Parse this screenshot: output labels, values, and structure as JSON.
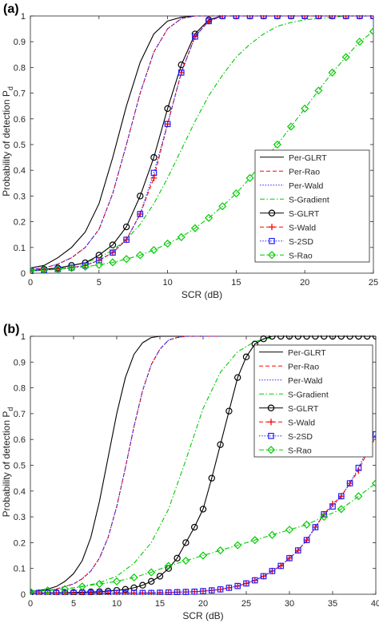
{
  "chart_data": [
    {
      "panel_label": "(a)",
      "type": "line",
      "xlabel": "SCR (dB)",
      "ylabel": "Probability of detection P",
      "ylabel_sub": "d",
      "xlim": [
        0,
        25
      ],
      "ylim": [
        0,
        1
      ],
      "xticks": [
        0,
        5,
        10,
        15,
        20,
        25
      ],
      "yticks": [
        0,
        0.1,
        0.2,
        0.3,
        0.4,
        0.5,
        0.6,
        0.7,
        0.8,
        0.9,
        1
      ],
      "grid": false,
      "legend_position": "lower-right",
      "series": [
        {
          "name": "Per-GLRT",
          "color": "#000000",
          "dash": "solid",
          "marker": "none",
          "x": [
            0,
            1,
            2,
            3,
            4,
            5,
            6,
            7,
            8,
            9,
            10,
            11,
            12,
            13,
            14,
            15,
            16,
            17,
            18,
            19,
            20,
            21,
            22,
            23,
            24,
            25
          ],
          "y": [
            0.02,
            0.03,
            0.06,
            0.1,
            0.16,
            0.27,
            0.45,
            0.65,
            0.82,
            0.93,
            0.98,
            0.995,
            1,
            1,
            1,
            1,
            1,
            1,
            1,
            1,
            1,
            1,
            1,
            1,
            1,
            1
          ]
        },
        {
          "name": "Per-Rao",
          "color": "#ff0000",
          "dash": "dashed",
          "marker": "none",
          "x": [
            0,
            1,
            2,
            3,
            4,
            5,
            6,
            7,
            8,
            9,
            10,
            11,
            12,
            13,
            14,
            15,
            16,
            17,
            18,
            19,
            20,
            21,
            22,
            23,
            24,
            25
          ],
          "y": [
            0.015,
            0.02,
            0.035,
            0.06,
            0.1,
            0.17,
            0.31,
            0.5,
            0.7,
            0.86,
            0.95,
            0.99,
            1,
            1,
            1,
            1,
            1,
            1,
            1,
            1,
            1,
            1,
            1,
            1,
            1,
            1
          ]
        },
        {
          "name": "Per-Wald",
          "color": "#2020ff",
          "dash": "dotted",
          "marker": "none",
          "x": [
            0,
            1,
            2,
            3,
            4,
            5,
            6,
            7,
            8,
            9,
            10,
            11,
            12,
            13,
            14,
            15,
            16,
            17,
            18,
            19,
            20,
            21,
            22,
            23,
            24,
            25
          ],
          "y": [
            0.015,
            0.02,
            0.035,
            0.06,
            0.1,
            0.17,
            0.31,
            0.5,
            0.7,
            0.86,
            0.95,
            0.99,
            1,
            1,
            1,
            1,
            1,
            1,
            1,
            1,
            1,
            1,
            1,
            1,
            1,
            1
          ]
        },
        {
          "name": "S-Gradient",
          "color": "#00cc00",
          "dash": "dashdot",
          "marker": "none",
          "x": [
            0,
            1,
            2,
            3,
            4,
            5,
            6,
            7,
            8,
            9,
            10,
            11,
            12,
            13,
            14,
            15,
            16,
            17,
            18,
            19,
            20,
            21,
            22,
            23,
            24,
            25
          ],
          "y": [
            0.01,
            0.015,
            0.02,
            0.03,
            0.04,
            0.06,
            0.09,
            0.13,
            0.19,
            0.27,
            0.37,
            0.48,
            0.59,
            0.69,
            0.77,
            0.84,
            0.89,
            0.93,
            0.96,
            0.975,
            0.985,
            0.99,
            0.995,
            1,
            1,
            1
          ]
        },
        {
          "name": "S-GLRT",
          "color": "#000000",
          "dash": "solid",
          "marker": "circle",
          "x": [
            0,
            1,
            2,
            3,
            4,
            5,
            6,
            7,
            8,
            9,
            10,
            11,
            12,
            13,
            14,
            15,
            16,
            17,
            18,
            19,
            20,
            21,
            22,
            23,
            24,
            25
          ],
          "y": [
            0.01,
            0.015,
            0.02,
            0.03,
            0.04,
            0.07,
            0.11,
            0.18,
            0.3,
            0.45,
            0.64,
            0.81,
            0.93,
            0.985,
            1,
            1,
            1,
            1,
            1,
            1,
            1,
            1,
            1,
            1,
            1,
            1
          ]
        },
        {
          "name": "S-Wald",
          "color": "#ff0000",
          "dash": "dashed",
          "marker": "plus",
          "x": [
            0,
            1,
            2,
            3,
            4,
            5,
            6,
            7,
            8,
            9,
            10,
            11,
            12,
            13,
            14,
            15,
            16,
            17,
            18,
            19,
            20,
            21,
            22,
            23,
            24,
            25
          ],
          "y": [
            0.008,
            0.012,
            0.016,
            0.022,
            0.03,
            0.05,
            0.08,
            0.13,
            0.23,
            0.37,
            0.58,
            0.78,
            0.92,
            0.98,
            1,
            1,
            1,
            1,
            1,
            1,
            1,
            1,
            1,
            1,
            1,
            1
          ]
        },
        {
          "name": "S-2SD",
          "color": "#2020ff",
          "dash": "dotted",
          "marker": "square",
          "x": [
            0,
            1,
            2,
            3,
            4,
            5,
            6,
            7,
            8,
            9,
            10,
            11,
            12,
            13,
            14,
            15,
            16,
            17,
            18,
            19,
            20,
            21,
            22,
            23,
            24,
            25
          ],
          "y": [
            0.008,
            0.012,
            0.016,
            0.022,
            0.03,
            0.05,
            0.08,
            0.13,
            0.23,
            0.39,
            0.58,
            0.78,
            0.92,
            0.98,
            1,
            1,
            1,
            1,
            1,
            1,
            1,
            1,
            1,
            1,
            1,
            1
          ]
        },
        {
          "name": "S-Rao",
          "color": "#00cc00",
          "dash": "dashdot",
          "marker": "diamond",
          "x": [
            0,
            1,
            2,
            3,
            4,
            5,
            6,
            7,
            8,
            9,
            10,
            11,
            12,
            13,
            14,
            15,
            16,
            17,
            18,
            19,
            20,
            21,
            22,
            23,
            24,
            25
          ],
          "y": [
            0.01,
            0.012,
            0.015,
            0.02,
            0.025,
            0.032,
            0.042,
            0.055,
            0.07,
            0.09,
            0.115,
            0.14,
            0.175,
            0.215,
            0.26,
            0.31,
            0.37,
            0.44,
            0.5,
            0.57,
            0.64,
            0.71,
            0.78,
            0.84,
            0.9,
            0.94
          ]
        }
      ]
    },
    {
      "panel_label": "(b)",
      "type": "line",
      "xlabel": "SCR (dB)",
      "ylabel": "Probability of detection P",
      "ylabel_sub": "d",
      "xlim": [
        0,
        40
      ],
      "ylim": [
        0,
        1
      ],
      "xticks": [
        0,
        5,
        10,
        15,
        20,
        25,
        30,
        35,
        40
      ],
      "yticks": [
        0,
        0.1,
        0.2,
        0.3,
        0.4,
        0.5,
        0.6,
        0.7,
        0.8,
        0.9,
        1
      ],
      "grid": false,
      "legend_position": "top-right",
      "series": [
        {
          "name": "Per-GLRT",
          "color": "#000000",
          "dash": "solid",
          "marker": "none",
          "x": [
            0,
            1,
            2,
            3,
            4,
            5,
            6,
            7,
            8,
            9,
            10,
            11,
            12,
            13,
            14,
            15,
            16,
            17,
            18,
            19,
            20
          ],
          "y": [
            0.01,
            0.015,
            0.02,
            0.03,
            0.05,
            0.08,
            0.13,
            0.22,
            0.36,
            0.53,
            0.7,
            0.84,
            0.93,
            0.975,
            0.995,
            1,
            1,
            1,
            1,
            1,
            1
          ]
        },
        {
          "name": "Per-Rao",
          "color": "#ff0000",
          "dash": "dashed",
          "marker": "none",
          "x": [
            0,
            1,
            2,
            3,
            4,
            5,
            6,
            7,
            8,
            9,
            10,
            11,
            12,
            13,
            14,
            15,
            16,
            17,
            18,
            19,
            20,
            21,
            22
          ],
          "y": [
            0.01,
            0.012,
            0.015,
            0.02,
            0.03,
            0.04,
            0.06,
            0.09,
            0.14,
            0.22,
            0.34,
            0.49,
            0.65,
            0.79,
            0.89,
            0.95,
            0.985,
            0.995,
            1,
            1,
            1,
            1,
            1
          ]
        },
        {
          "name": "Per-Wald",
          "color": "#2020ff",
          "dash": "dotted",
          "marker": "none",
          "x": [
            0,
            1,
            2,
            3,
            4,
            5,
            6,
            7,
            8,
            9,
            10,
            11,
            12,
            13,
            14,
            15,
            16,
            17,
            18,
            19,
            20,
            21,
            22
          ],
          "y": [
            0.01,
            0.012,
            0.015,
            0.02,
            0.03,
            0.04,
            0.06,
            0.09,
            0.14,
            0.22,
            0.34,
            0.49,
            0.65,
            0.79,
            0.89,
            0.95,
            0.985,
            0.995,
            1,
            1,
            1,
            1,
            1
          ]
        },
        {
          "name": "S-Gradient",
          "color": "#00cc00",
          "dash": "dashdot",
          "marker": "none",
          "x": [
            0,
            2,
            4,
            6,
            8,
            10,
            12,
            14,
            16,
            18,
            20,
            22,
            24,
            26,
            28
          ],
          "y": [
            0.01,
            0.015,
            0.02,
            0.03,
            0.045,
            0.07,
            0.12,
            0.2,
            0.33,
            0.52,
            0.72,
            0.86,
            0.94,
            0.98,
            0.995
          ]
        },
        {
          "name": "S-GLRT",
          "color": "#000000",
          "dash": "solid",
          "marker": "circle",
          "x": [
            0,
            1,
            2,
            3,
            4,
            5,
            6,
            7,
            8,
            9,
            10,
            11,
            12,
            13,
            14,
            15,
            16,
            17,
            18,
            19,
            20,
            21,
            22,
            23,
            24,
            25,
            26,
            27,
            28,
            29,
            30,
            31,
            32,
            33,
            34,
            35,
            36,
            37,
            38,
            39,
            40
          ],
          "y": [
            0.005,
            0.005,
            0.005,
            0.006,
            0.006,
            0.007,
            0.008,
            0.009,
            0.01,
            0.012,
            0.015,
            0.019,
            0.025,
            0.035,
            0.05,
            0.07,
            0.1,
            0.14,
            0.2,
            0.26,
            0.33,
            0.45,
            0.58,
            0.71,
            0.84,
            0.92,
            0.97,
            0.99,
            1,
            1,
            1,
            1,
            1,
            1,
            1,
            1,
            1,
            1,
            1,
            1,
            1
          ]
        },
        {
          "name": "S-Wald",
          "color": "#ff0000",
          "dash": "dashed",
          "marker": "plus",
          "x": [
            0,
            1,
            2,
            3,
            4,
            5,
            6,
            7,
            8,
            9,
            10,
            11,
            12,
            13,
            14,
            15,
            16,
            17,
            18,
            19,
            20,
            21,
            22,
            23,
            24,
            25,
            26,
            27,
            28,
            29,
            30,
            31,
            32,
            33,
            34,
            35,
            36,
            37,
            38,
            39,
            40
          ],
          "y": [
            0.005,
            0.005,
            0.005,
            0.005,
            0.005,
            0.005,
            0.005,
            0.005,
            0.005,
            0.005,
            0.005,
            0.005,
            0.005,
            0.005,
            0.005,
            0.006,
            0.007,
            0.008,
            0.009,
            0.01,
            0.012,
            0.015,
            0.019,
            0.025,
            0.032,
            0.042,
            0.054,
            0.07,
            0.09,
            0.11,
            0.14,
            0.17,
            0.21,
            0.26,
            0.31,
            0.35,
            0.38,
            0.43,
            0.48,
            0.55,
            0.61
          ]
        },
        {
          "name": "S-2SD",
          "color": "#2020ff",
          "dash": "dotted",
          "marker": "square",
          "x": [
            0,
            1,
            2,
            3,
            4,
            5,
            6,
            7,
            8,
            9,
            10,
            11,
            12,
            13,
            14,
            15,
            16,
            17,
            18,
            19,
            20,
            21,
            22,
            23,
            24,
            25,
            26,
            27,
            28,
            29,
            30,
            31,
            32,
            33,
            34,
            35,
            36,
            37,
            38,
            39,
            40
          ],
          "y": [
            0.005,
            0.005,
            0.005,
            0.005,
            0.005,
            0.005,
            0.005,
            0.005,
            0.005,
            0.005,
            0.005,
            0.005,
            0.005,
            0.005,
            0.005,
            0.006,
            0.007,
            0.008,
            0.009,
            0.01,
            0.012,
            0.015,
            0.019,
            0.025,
            0.032,
            0.042,
            0.054,
            0.07,
            0.09,
            0.11,
            0.14,
            0.17,
            0.21,
            0.26,
            0.31,
            0.34,
            0.38,
            0.43,
            0.49,
            0.56,
            0.62
          ]
        },
        {
          "name": "S-Rao",
          "color": "#00cc00",
          "dash": "dashdot",
          "marker": "diamond",
          "x": [
            0,
            2,
            4,
            6,
            8,
            10,
            12,
            14,
            16,
            18,
            20,
            22,
            24,
            26,
            28,
            30,
            32,
            34,
            36,
            38,
            40
          ],
          "y": [
            0.01,
            0.015,
            0.02,
            0.03,
            0.04,
            0.05,
            0.065,
            0.085,
            0.11,
            0.13,
            0.15,
            0.17,
            0.19,
            0.21,
            0.23,
            0.25,
            0.27,
            0.3,
            0.33,
            0.38,
            0.43
          ]
        }
      ]
    }
  ]
}
